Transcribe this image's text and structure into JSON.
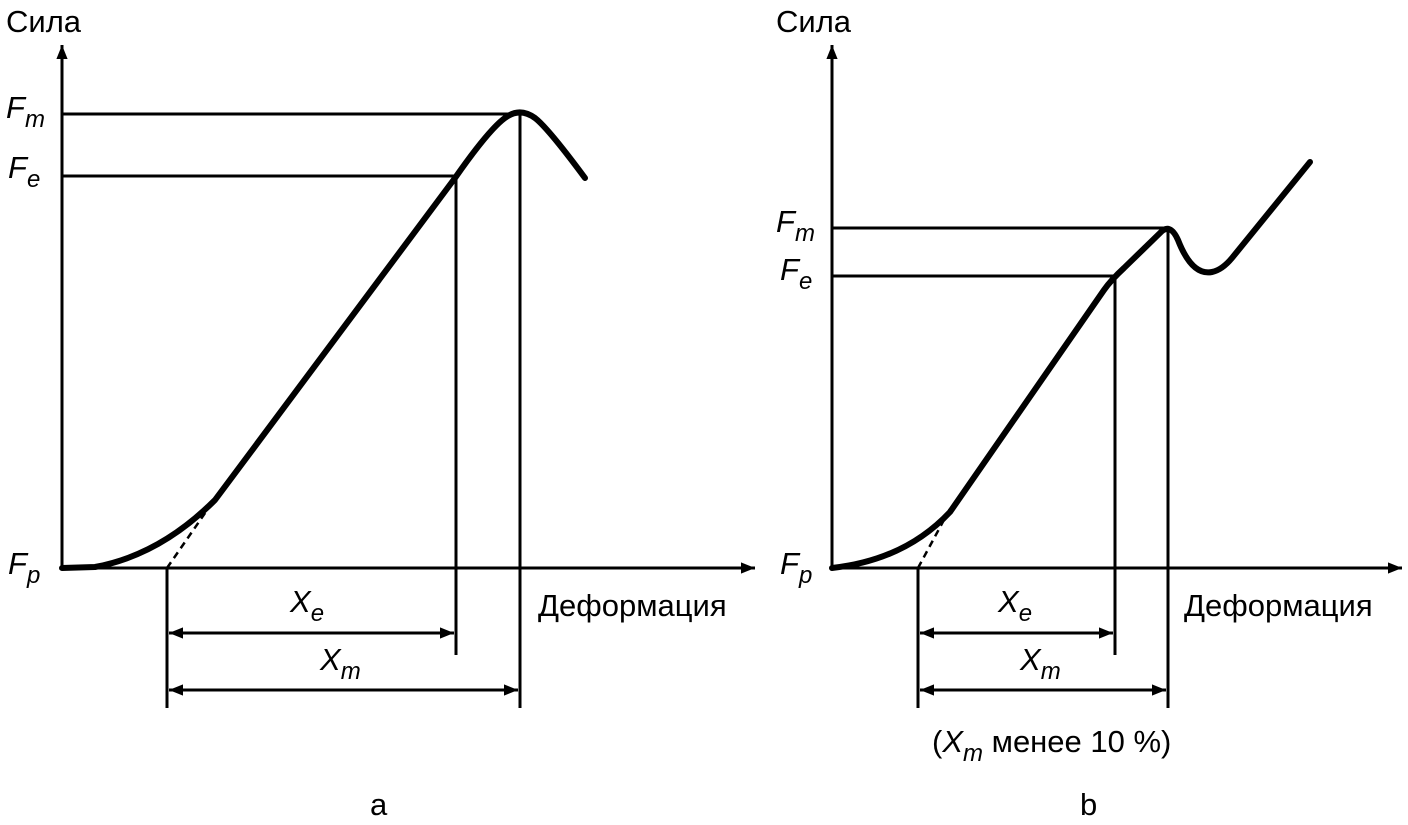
{
  "panels": [
    {
      "y_axis_label": "Сила",
      "x_axis_label": "Деформация",
      "caption": "a",
      "labels": {
        "fm": {
          "main": "F",
          "sub": "m"
        },
        "fe": {
          "main": "F",
          "sub": "e"
        },
        "fp": {
          "main": "F",
          "sub": "p"
        },
        "xe": {
          "main": "X",
          "sub": "e"
        },
        "xm": {
          "main": "X",
          "sub": "m"
        }
      }
    },
    {
      "y_axis_label": "Сила",
      "x_axis_label": "Деформация",
      "caption": "b",
      "labels": {
        "fm": {
          "main": "F",
          "sub": "m"
        },
        "fe": {
          "main": "F",
          "sub": "e"
        },
        "fp": {
          "main": "F",
          "sub": "p"
        },
        "xe": {
          "main": "X",
          "sub": "e"
        },
        "xm": {
          "main": "X",
          "sub": "m"
        }
      },
      "note": {
        "open": "(",
        "main": "X",
        "sub": "m",
        "rest": " менее 10 %)"
      }
    }
  ]
}
